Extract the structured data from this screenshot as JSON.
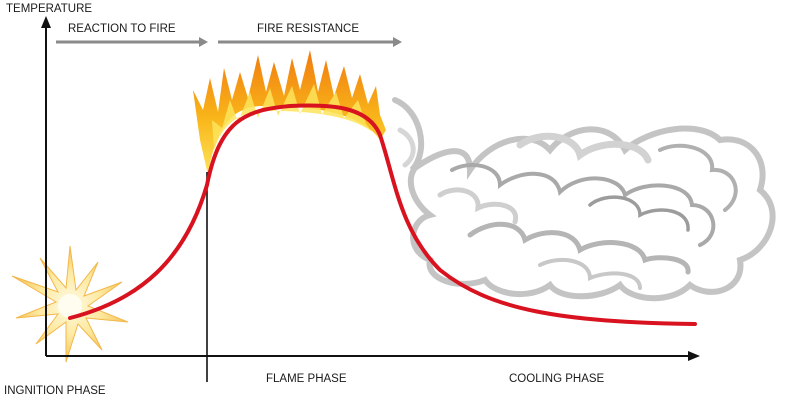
{
  "axis": {
    "y_label": "TEMPERATURE"
  },
  "phase_arrows": [
    {
      "label": "REACTION TO FIRE"
    },
    {
      "label": "FIRE RESISTANCE"
    }
  ],
  "phases": [
    {
      "label": "INGNITION PHASE"
    },
    {
      "label": "FLAME PHASE"
    },
    {
      "label": "COOLING PHASE"
    }
  ],
  "colors": {
    "curve": "#d8131f",
    "axis": "#111111",
    "arrow": "#8a8a8a",
    "flame_outer": "#f7a416",
    "flame_inner": "#fde45a",
    "smoke": "#bdbdbd",
    "spark": "#fbe08a"
  },
  "illustrations": {
    "ignition": "spark-icon",
    "flame": "flame-icon",
    "cooling": "smoke-icon"
  }
}
